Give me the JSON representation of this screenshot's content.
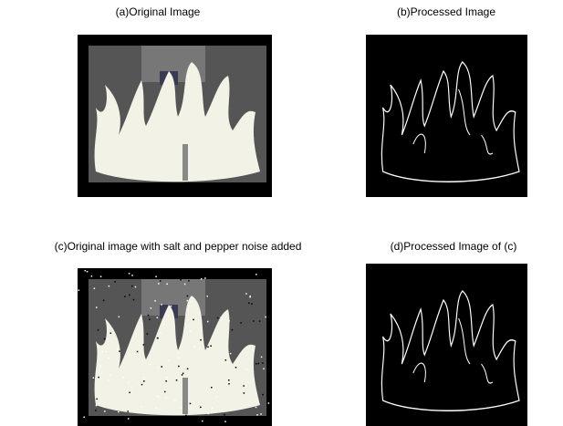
{
  "panels": [
    {
      "title": "(a)Original Image"
    },
    {
      "title": "(b)Processed Image"
    },
    {
      "title": "(c)Original image with salt and pepper noise added"
    },
    {
      "title": "(d)Processed Image of (c)"
    }
  ]
}
